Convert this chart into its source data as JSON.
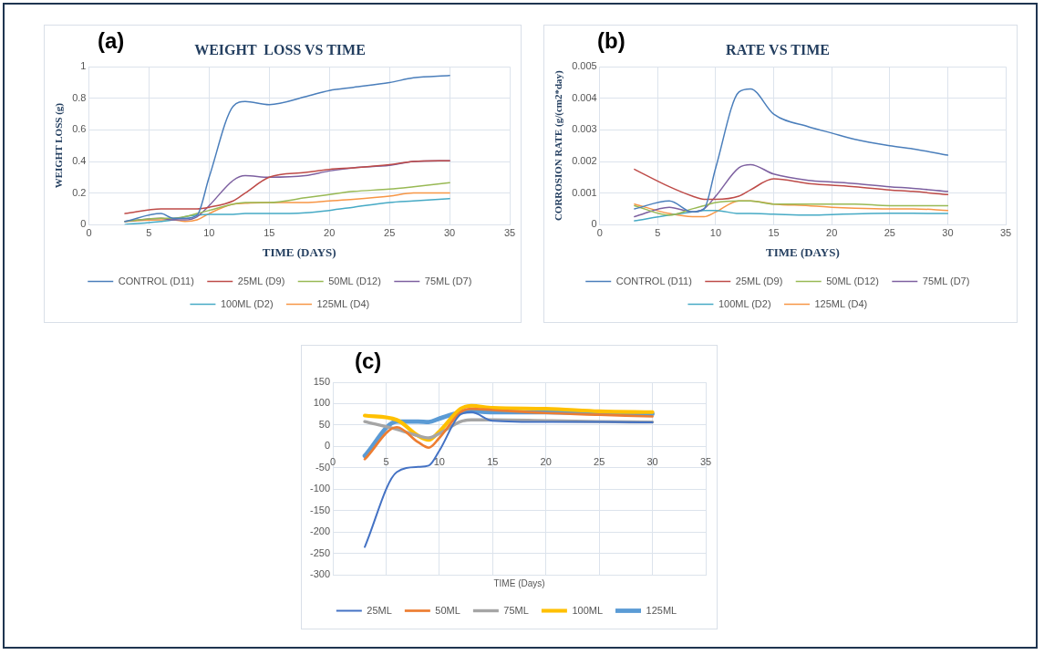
{
  "chart_data": [
    {
      "type": "line",
      "title": "WEIGHT  LOSS VS TIME",
      "xlabel": "TIME (DAYS)",
      "ylabel": "WEIGHT LOSS (g)",
      "annotations": [
        "(a)"
      ],
      "legend": "bottom",
      "grid": true,
      "marker": "none",
      "line_style": "solid",
      "xlim": [
        0,
        35
      ],
      "xticks": [
        0,
        5,
        10,
        15,
        20,
        25,
        30,
        35
      ],
      "ylim": [
        0,
        1
      ],
      "yticks": [
        0,
        0.2,
        0.4,
        0.6,
        0.8,
        1
      ],
      "x": [
        3,
        6,
        7,
        8,
        9,
        10,
        12,
        13,
        15,
        18,
        20,
        22,
        25,
        27,
        30
      ],
      "series": [
        {
          "name": "CONTROL (D11)",
          "color": "#4a7ebb",
          "values": [
            0.02,
            0.07,
            0.04,
            0.04,
            0.06,
            0.3,
            0.75,
            0.78,
            0.76,
            0.81,
            0.85,
            0.87,
            0.9,
            0.93,
            0.945
          ]
        },
        {
          "name": "25ML (D9)",
          "color": "#be4b48",
          "values": [
            0.07,
            0.1,
            0.1,
            0.1,
            0.1,
            0.11,
            0.15,
            0.2,
            0.3,
            0.33,
            0.35,
            0.36,
            0.38,
            0.4,
            0.405
          ]
        },
        {
          "name": "50ML (D12)",
          "color": "#98b954",
          "values": [
            0.02,
            0.04,
            0.04,
            0.05,
            0.07,
            0.09,
            0.13,
            0.14,
            0.14,
            0.17,
            0.19,
            0.21,
            0.225,
            0.24,
            0.265
          ]
        },
        {
          "name": "75ML (D7)",
          "color": "#7d60a0",
          "values": [
            0.02,
            0.04,
            0.03,
            0.03,
            0.05,
            0.12,
            0.28,
            0.31,
            0.3,
            0.31,
            0.34,
            0.36,
            0.375,
            0.4,
            0.405
          ]
        },
        {
          "name": "100ML (D2)",
          "color": "#46aac5",
          "values": [
            0,
            0.02,
            0.03,
            0.05,
            0.06,
            0.065,
            0.065,
            0.07,
            0.07,
            0.075,
            0.09,
            0.11,
            0.14,
            0.15,
            0.165
          ]
        },
        {
          "name": "125ML (D4)",
          "color": "#f79646",
          "values": [
            0.02,
            0.03,
            0.03,
            0.02,
            0.03,
            0.07,
            0.13,
            0.135,
            0.14,
            0.14,
            0.15,
            0.16,
            0.18,
            0.2,
            0.2
          ]
        }
      ]
    },
    {
      "type": "line",
      "title": "RATE VS TIME",
      "xlabel": "TIME (DAYS)",
      "ylabel": "CORROSION RATE (g/(cm2*day)",
      "annotations": [
        "(b)"
      ],
      "legend": "bottom",
      "grid": true,
      "marker": "none",
      "line_style": "solid",
      "xlim": [
        0,
        35
      ],
      "xticks": [
        0,
        5,
        10,
        15,
        20,
        25,
        30,
        35
      ],
      "ylim": [
        0,
        0.005
      ],
      "yticks": [
        0,
        0.001,
        0.002,
        0.003,
        0.004,
        0.005
      ],
      "x": [
        3,
        6,
        8,
        9,
        10,
        12,
        13,
        15,
        18,
        20,
        22,
        25,
        27,
        30
      ],
      "series": [
        {
          "name": "CONTROL (D11)",
          "color": "#4a7ebb",
          "values": [
            0.0005,
            0.00075,
            0.0004,
            0.0005,
            0.0018,
            0.0042,
            0.0043,
            0.0035,
            0.0031,
            0.0029,
            0.0027,
            0.0025,
            0.0024,
            0.0022
          ]
        },
        {
          "name": "25ML (D9)",
          "color": "#be4b48",
          "values": [
            0.00175,
            0.0012,
            0.0009,
            0.0008,
            0.0008,
            0.0009,
            0.0011,
            0.00145,
            0.0013,
            0.00125,
            0.0012,
            0.0011,
            0.00105,
            0.00095
          ]
        },
        {
          "name": "50ML (D12)",
          "color": "#98b954",
          "values": [
            0.0006,
            0.0003,
            0.0005,
            0.0006,
            0.0007,
            0.00075,
            0.00075,
            0.00065,
            0.00065,
            0.00065,
            0.00065,
            0.0006,
            0.0006,
            0.0006
          ]
        },
        {
          "name": "75ML (D7)",
          "color": "#7d60a0",
          "values": [
            0.00025,
            0.00055,
            0.0004,
            0.0005,
            0.0009,
            0.0018,
            0.0019,
            0.0016,
            0.0014,
            0.00135,
            0.0013,
            0.0012,
            0.00115,
            0.00105
          ]
        },
        {
          "name": "100ML (D2)",
          "color": "#46aac5",
          "values": [
            0.00012,
            0.0003,
            0.0004,
            0.00045,
            0.00045,
            0.00035,
            0.00035,
            0.00033,
            0.0003,
            0.00032,
            0.00034,
            0.00036,
            0.00036,
            0.00035
          ]
        },
        {
          "name": "125ML (D4)",
          "color": "#f79646",
          "values": [
            0.00065,
            0.00035,
            0.00025,
            0.00025,
            0.0004,
            0.00075,
            0.00075,
            0.00065,
            0.0006,
            0.00055,
            0.00052,
            0.0005,
            0.0005,
            0.00045
          ]
        }
      ]
    },
    {
      "type": "line",
      "xlabel": "TIME (Days)",
      "annotations": [
        "(c)"
      ],
      "legend": "bottom",
      "grid": true,
      "marker": "none",
      "line_style": "solid",
      "xlim": [
        0,
        35
      ],
      "xticks": [
        0,
        5,
        10,
        15,
        20,
        25,
        30,
        35
      ],
      "ylim": [
        -300,
        150
      ],
      "yticks": [
        -300,
        -250,
        -200,
        -150,
        -100,
        -50,
        0,
        50,
        100,
        150
      ],
      "x": [
        3,
        6,
        8,
        9,
        10,
        12,
        13,
        15,
        20,
        25,
        30
      ],
      "series": [
        {
          "name": "25ML",
          "color": "#4472c4",
          "values": [
            -235,
            -60,
            -48,
            -45,
            -10,
            75,
            80,
            60,
            57,
            57,
            56
          ]
        },
        {
          "name": "50ML",
          "color": "#ed7d31",
          "values": [
            -30,
            45,
            10,
            -3,
            20,
            80,
            88,
            85,
            78,
            74,
            70
          ]
        },
        {
          "name": "75ML",
          "color": "#a5a5a5",
          "values": [
            58,
            40,
            25,
            20,
            30,
            58,
            62,
            62,
            60,
            58,
            57
          ]
        },
        {
          "name": "100ML",
          "color": "#ffc000",
          "values": [
            72,
            62,
            25,
            15,
            35,
            88,
            95,
            90,
            88,
            82,
            80
          ]
        },
        {
          "name": "125ML",
          "color": "#5b9bd5",
          "values": [
            -22,
            58,
            58,
            57,
            65,
            80,
            82,
            80,
            80,
            78,
            76
          ]
        }
      ]
    }
  ]
}
